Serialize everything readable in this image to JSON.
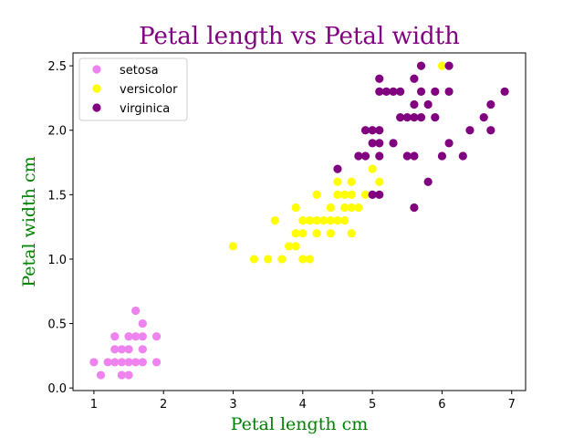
{
  "chart_data": {
    "type": "scatter",
    "title": "Petal length vs Petal width",
    "xlabel": "Petal length cm",
    "ylabel": "Petal width cm",
    "xlim": [
      0.7,
      7.2
    ],
    "ylim": [
      -0.02,
      2.6
    ],
    "xticks": [
      1,
      2,
      3,
      4,
      5,
      6,
      7
    ],
    "xtick_labels": [
      "1",
      "2",
      "3",
      "4",
      "5",
      "6",
      "7"
    ],
    "yticks": [
      0.0,
      0.5,
      1.0,
      1.5,
      2.0,
      2.5
    ],
    "ytick_labels": [
      "0.0",
      "0.5",
      "1.0",
      "1.5",
      "2.0",
      "2.5"
    ],
    "grid": false,
    "legend_position": "top-left",
    "series": [
      {
        "name": "setosa",
        "color": "#ee82ee",
        "points": [
          [
            1.0,
            0.2
          ],
          [
            1.1,
            0.1
          ],
          [
            1.2,
            0.2
          ],
          [
            1.3,
            0.2
          ],
          [
            1.3,
            0.3
          ],
          [
            1.3,
            0.4
          ],
          [
            1.4,
            0.1
          ],
          [
            1.4,
            0.2
          ],
          [
            1.4,
            0.3
          ],
          [
            1.5,
            0.1
          ],
          [
            1.5,
            0.2
          ],
          [
            1.5,
            0.3
          ],
          [
            1.5,
            0.4
          ],
          [
            1.6,
            0.2
          ],
          [
            1.6,
            0.4
          ],
          [
            1.6,
            0.6
          ],
          [
            1.7,
            0.2
          ],
          [
            1.7,
            0.3
          ],
          [
            1.7,
            0.4
          ],
          [
            1.7,
            0.5
          ],
          [
            1.9,
            0.2
          ],
          [
            1.9,
            0.4
          ]
        ]
      },
      {
        "name": "versicolor",
        "color": "#ffff00",
        "points": [
          [
            3.0,
            1.1
          ],
          [
            3.3,
            1.0
          ],
          [
            3.5,
            1.0
          ],
          [
            3.6,
            1.3
          ],
          [
            3.7,
            1.0
          ],
          [
            3.8,
            1.1
          ],
          [
            3.9,
            1.1
          ],
          [
            3.9,
            1.2
          ],
          [
            3.9,
            1.4
          ],
          [
            4.0,
            1.0
          ],
          [
            4.0,
            1.2
          ],
          [
            4.0,
            1.3
          ],
          [
            4.1,
            1.0
          ],
          [
            4.1,
            1.3
          ],
          [
            4.2,
            1.2
          ],
          [
            4.2,
            1.3
          ],
          [
            4.2,
            1.5
          ],
          [
            4.3,
            1.3
          ],
          [
            4.4,
            1.2
          ],
          [
            4.4,
            1.3
          ],
          [
            4.4,
            1.4
          ],
          [
            4.5,
            1.3
          ],
          [
            4.5,
            1.5
          ],
          [
            4.5,
            1.6
          ],
          [
            4.6,
            1.3
          ],
          [
            4.6,
            1.4
          ],
          [
            4.6,
            1.5
          ],
          [
            4.7,
            1.2
          ],
          [
            4.7,
            1.4
          ],
          [
            4.7,
            1.5
          ],
          [
            4.7,
            1.6
          ],
          [
            4.8,
            1.4
          ],
          [
            4.9,
            1.5
          ],
          [
            5.0,
            1.7
          ],
          [
            5.1,
            1.6
          ],
          [
            6.0,
            2.5
          ]
        ]
      },
      {
        "name": "virginica",
        "color": "#800080",
        "points": [
          [
            4.5,
            1.7
          ],
          [
            4.8,
            1.8
          ],
          [
            4.9,
            1.8
          ],
          [
            4.9,
            2.0
          ],
          [
            5.0,
            1.5
          ],
          [
            5.0,
            1.9
          ],
          [
            5.0,
            2.0
          ],
          [
            5.1,
            1.5
          ],
          [
            5.1,
            1.8
          ],
          [
            5.1,
            1.9
          ],
          [
            5.1,
            2.0
          ],
          [
            5.1,
            2.3
          ],
          [
            5.1,
            2.4
          ],
          [
            5.2,
            2.3
          ],
          [
            5.3,
            1.9
          ],
          [
            5.3,
            2.3
          ],
          [
            5.4,
            2.1
          ],
          [
            5.4,
            2.3
          ],
          [
            5.5,
            1.8
          ],
          [
            5.5,
            2.1
          ],
          [
            5.6,
            1.4
          ],
          [
            5.6,
            1.8
          ],
          [
            5.6,
            2.1
          ],
          [
            5.6,
            2.2
          ],
          [
            5.6,
            2.4
          ],
          [
            5.7,
            2.1
          ],
          [
            5.7,
            2.3
          ],
          [
            5.7,
            2.5
          ],
          [
            5.8,
            1.6
          ],
          [
            5.8,
            2.2
          ],
          [
            5.9,
            2.1
          ],
          [
            5.9,
            2.3
          ],
          [
            6.0,
            1.8
          ],
          [
            6.1,
            1.9
          ],
          [
            6.1,
            2.3
          ],
          [
            6.1,
            2.5
          ],
          [
            6.3,
            1.8
          ],
          [
            6.4,
            2.0
          ],
          [
            6.6,
            2.1
          ],
          [
            6.7,
            2.0
          ],
          [
            6.7,
            2.2
          ],
          [
            6.9,
            2.3
          ]
        ]
      }
    ]
  }
}
